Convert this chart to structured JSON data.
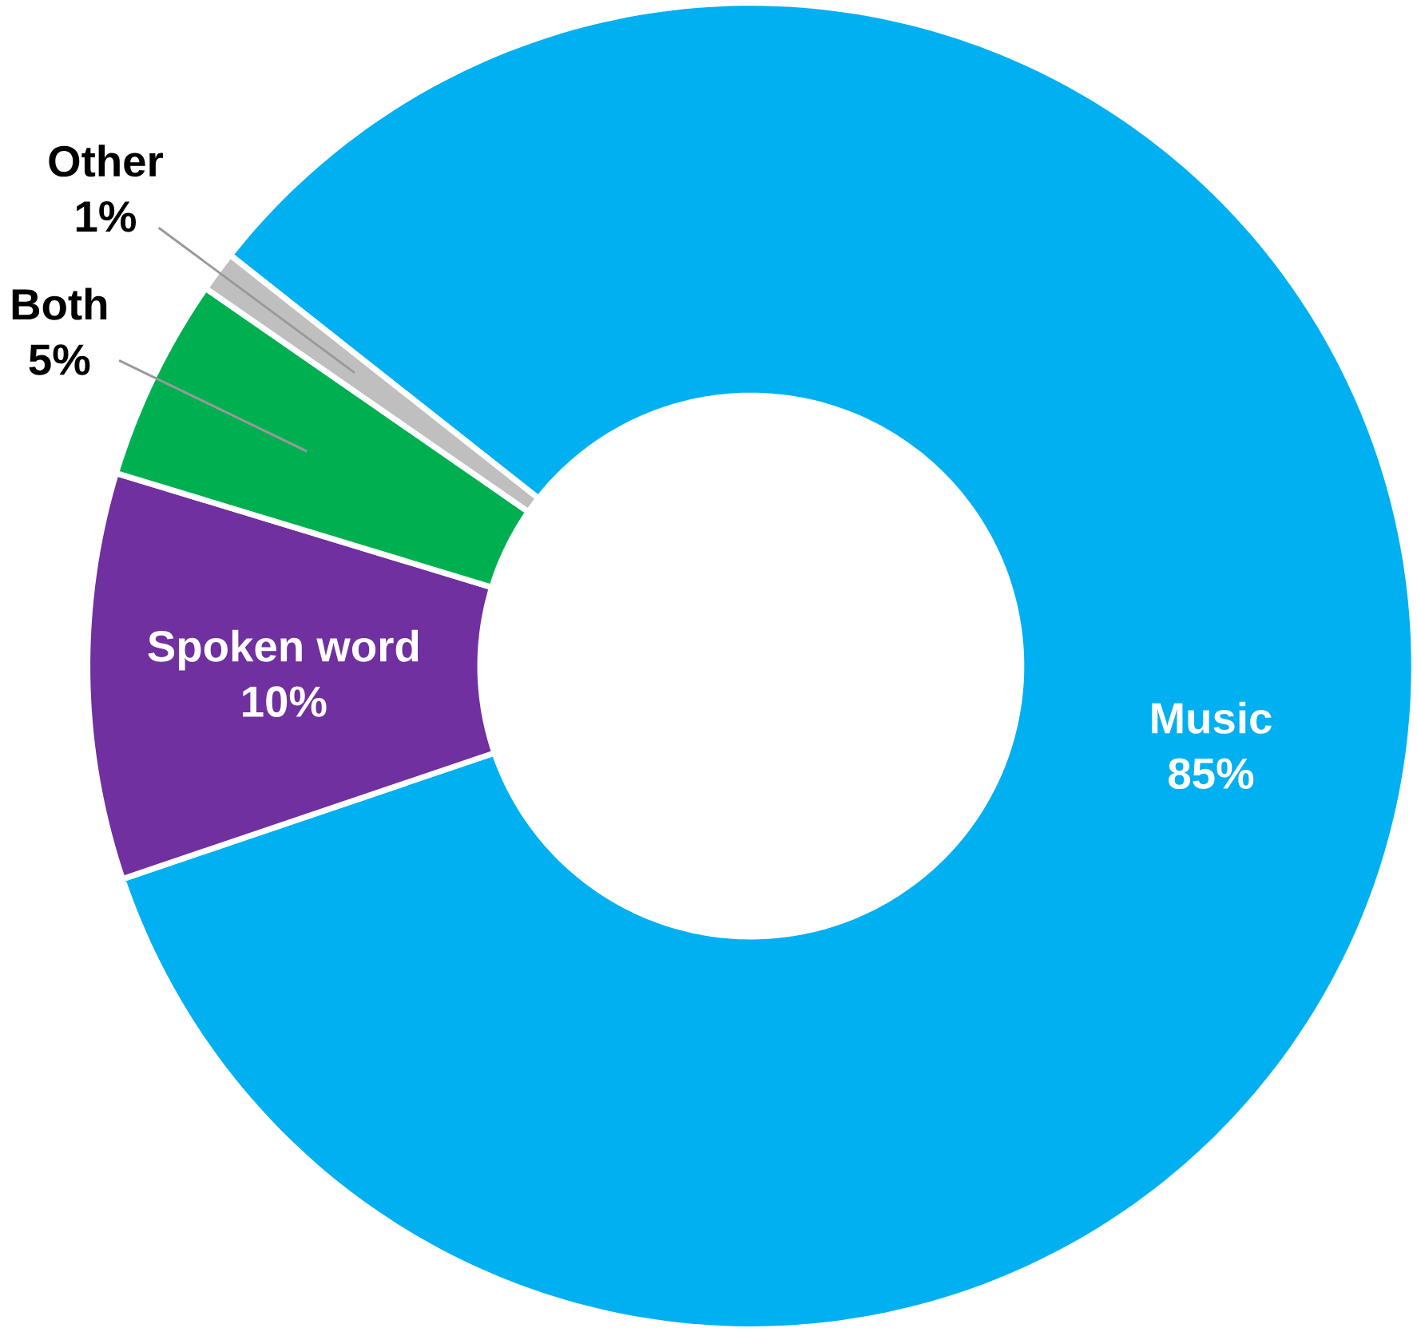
{
  "chart_data": {
    "type": "donut",
    "categories": [
      "Music",
      "Spoken word",
      "Both",
      "Other"
    ],
    "values": [
      85,
      10,
      5,
      1
    ],
    "value_labels": [
      "85%",
      "10%",
      "5%",
      "1%"
    ],
    "colors": [
      "#00b0f0",
      "#7030a0",
      "#00b050",
      "#bfbfbf"
    ]
  }
}
